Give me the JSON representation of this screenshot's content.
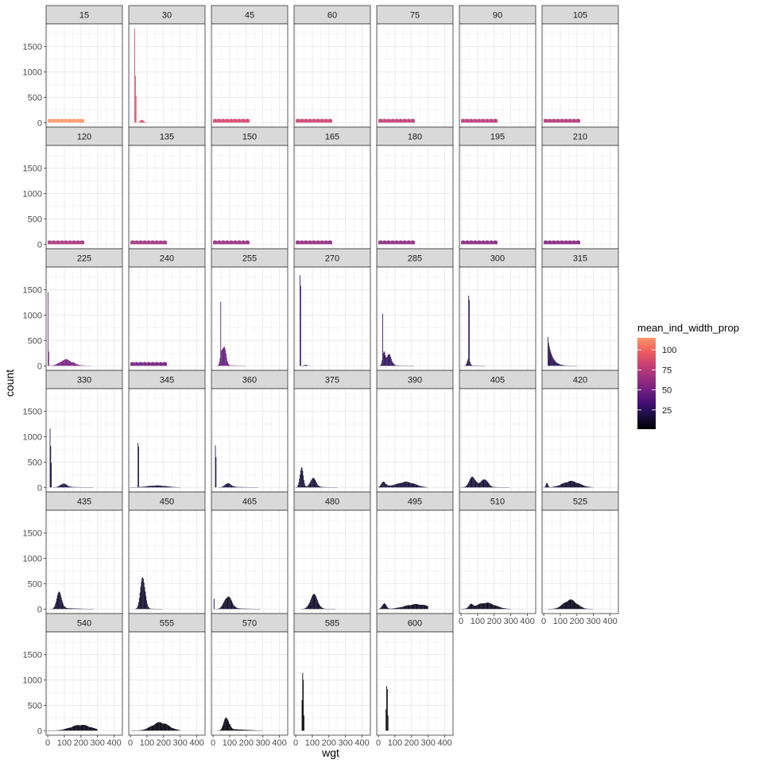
{
  "chart_data": {
    "type": "bar",
    "subtype": "faceted-histogram",
    "title": "",
    "xlabel": "wgt",
    "ylabel": "count",
    "xlim": [
      -10,
      450
    ],
    "ylim": [
      -90,
      1950
    ],
    "xticks": [
      0,
      100,
      200,
      300,
      400
    ],
    "xtick_labels": [
      "0",
      "100",
      "200",
      "300",
      "400"
    ],
    "yticks": [
      0,
      500,
      1000,
      1500
    ],
    "yticks_labels": [
      "0",
      "500",
      "1000",
      "1500"
    ],
    "grid": true,
    "facet_columns": 7,
    "fill_variable": "mean_ind_width_prop",
    "legend": {
      "title": "mean_ind_width_prop",
      "placement": "right",
      "breaks": [
        25,
        50,
        75,
        100
      ],
      "break_labels": [
        "25",
        "50",
        "75",
        "100"
      ],
      "range": [
        1,
        115
      ],
      "palette": [
        "#000004",
        "#180f3d",
        "#440f76",
        "#721f81",
        "#9e2f7f",
        "#cd4071",
        "#f1605d",
        "#fd9668"
      ]
    },
    "bin_width": 4,
    "panels": [
      {
        "label": "15",
        "fill_value": 115,
        "distribution": [
          {
            "shape": "flat",
            "from": 0,
            "to": 220,
            "level": 75
          }
        ]
      },
      {
        "label": "30",
        "fill_value": 88,
        "distribution": [
          {
            "shape": "spike",
            "at": 25,
            "height": 1860
          },
          {
            "shape": "spike",
            "at": 29,
            "height": 930
          },
          {
            "shape": "spike",
            "at": 33,
            "height": 530
          },
          {
            "shape": "bump",
            "center": 70,
            "width": 10,
            "height": 60
          }
        ]
      },
      {
        "label": "45",
        "fill_value": 85,
        "distribution": [
          {
            "shape": "flat",
            "from": 0,
            "to": 220,
            "level": 75
          }
        ]
      },
      {
        "label": "60",
        "fill_value": 82,
        "distribution": [
          {
            "shape": "flat",
            "from": 0,
            "to": 220,
            "level": 75
          }
        ]
      },
      {
        "label": "75",
        "fill_value": 79,
        "distribution": [
          {
            "shape": "flat",
            "from": 0,
            "to": 220,
            "level": 75
          }
        ]
      },
      {
        "label": "90",
        "fill_value": 76,
        "distribution": [
          {
            "shape": "flat",
            "from": 0,
            "to": 220,
            "level": 75
          }
        ]
      },
      {
        "label": "105",
        "fill_value": 73,
        "distribution": [
          {
            "shape": "flat",
            "from": 0,
            "to": 220,
            "level": 75
          }
        ]
      },
      {
        "label": "120",
        "fill_value": 70,
        "distribution": [
          {
            "shape": "flat",
            "from": 0,
            "to": 220,
            "level": 75
          }
        ]
      },
      {
        "label": "135",
        "fill_value": 67,
        "distribution": [
          {
            "shape": "flat",
            "from": 0,
            "to": 220,
            "level": 75
          }
        ]
      },
      {
        "label": "150",
        "fill_value": 64,
        "distribution": [
          {
            "shape": "flat",
            "from": 0,
            "to": 220,
            "level": 75
          }
        ]
      },
      {
        "label": "165",
        "fill_value": 62,
        "distribution": [
          {
            "shape": "flat",
            "from": 0,
            "to": 220,
            "level": 75
          }
        ]
      },
      {
        "label": "180",
        "fill_value": 60,
        "distribution": [
          {
            "shape": "flat",
            "from": 0,
            "to": 220,
            "level": 75
          }
        ]
      },
      {
        "label": "195",
        "fill_value": 58,
        "distribution": [
          {
            "shape": "flat",
            "from": 0,
            "to": 220,
            "level": 75
          }
        ]
      },
      {
        "label": "210",
        "fill_value": 56,
        "distribution": [
          {
            "shape": "flat",
            "from": 0,
            "to": 220,
            "level": 75
          }
        ]
      },
      {
        "label": "225",
        "fill_value": 52,
        "distribution": [
          {
            "shape": "spike",
            "at": 2,
            "height": 1450
          },
          {
            "shape": "spike",
            "at": 6,
            "height": 280
          },
          {
            "shape": "bump",
            "center": 110,
            "width": 35,
            "height": 130
          },
          {
            "shape": "tail",
            "from": 150,
            "to": 260,
            "level": 15
          }
        ]
      },
      {
        "label": "240",
        "fill_value": 50,
        "distribution": [
          {
            "shape": "flat",
            "from": 0,
            "to": 220,
            "level": 75
          }
        ]
      },
      {
        "label": "255",
        "fill_value": 45,
        "distribution": [
          {
            "shape": "spike",
            "at": 45,
            "height": 1030
          },
          {
            "shape": "bump",
            "center": 70,
            "width": 10,
            "height": 380
          },
          {
            "shape": "bump",
            "center": 50,
            "width": 8,
            "height": 250
          },
          {
            "shape": "tail",
            "from": 90,
            "to": 200,
            "level": 12
          }
        ]
      },
      {
        "label": "270",
        "fill_value": 30,
        "distribution": [
          {
            "shape": "spike",
            "at": 25,
            "height": 1790
          },
          {
            "shape": "spike",
            "at": 29,
            "height": 1580
          },
          {
            "shape": "bump",
            "center": 60,
            "width": 10,
            "height": 20
          }
        ]
      },
      {
        "label": "285",
        "fill_value": 26,
        "distribution": [
          {
            "shape": "spike",
            "at": 25,
            "height": 850
          },
          {
            "shape": "bump",
            "center": 65,
            "width": 14,
            "height": 240
          },
          {
            "shape": "bump",
            "center": 33,
            "width": 8,
            "height": 300
          },
          {
            "shape": "tail",
            "from": 90,
            "to": 220,
            "level": 10
          }
        ]
      },
      {
        "label": "300",
        "fill_value": 24,
        "distribution": [
          {
            "shape": "spike",
            "at": 45,
            "height": 1240
          },
          {
            "shape": "spike",
            "at": 49,
            "height": 1180
          },
          {
            "shape": "bump",
            "center": 45,
            "width": 8,
            "height": 150
          },
          {
            "shape": "tail",
            "from": 60,
            "to": 150,
            "level": 8
          }
        ]
      },
      {
        "label": "315",
        "fill_value": 22,
        "distribution": [
          {
            "shape": "spike",
            "at": 25,
            "height": 570
          },
          {
            "shape": "decay",
            "from": 30,
            "to": 200,
            "start": 450,
            "rate": 25
          }
        ]
      },
      {
        "label": "330",
        "fill_value": 20,
        "distribution": [
          {
            "shape": "spike",
            "at": 13,
            "height": 1160
          },
          {
            "shape": "spike",
            "at": 17,
            "height": 820
          },
          {
            "shape": "spike",
            "at": 21,
            "height": 480
          },
          {
            "shape": "bump",
            "center": 95,
            "width": 20,
            "height": 80
          },
          {
            "shape": "tail",
            "from": 130,
            "to": 280,
            "level": 10
          }
        ]
      },
      {
        "label": "345",
        "fill_value": 19,
        "distribution": [
          {
            "shape": "spike",
            "at": 45,
            "height": 870
          },
          {
            "shape": "spike",
            "at": 49,
            "height": 800
          },
          {
            "shape": "bump",
            "center": 160,
            "width": 60,
            "height": 40
          }
        ]
      },
      {
        "label": "360",
        "fill_value": 18,
        "distribution": [
          {
            "shape": "spike",
            "at": 15,
            "height": 830
          },
          {
            "shape": "spike",
            "at": 19,
            "height": 600
          },
          {
            "shape": "bump",
            "center": 90,
            "width": 18,
            "height": 90
          },
          {
            "shape": "tail",
            "from": 120,
            "to": 280,
            "level": 12
          }
        ]
      },
      {
        "label": "375",
        "fill_value": 17,
        "distribution": [
          {
            "shape": "bump",
            "center": 35,
            "width": 10,
            "height": 440
          },
          {
            "shape": "bump",
            "center": 105,
            "width": 18,
            "height": 190
          },
          {
            "shape": "tail",
            "from": 140,
            "to": 260,
            "level": 10
          }
        ]
      },
      {
        "label": "390",
        "fill_value": 16,
        "distribution": [
          {
            "shape": "bump",
            "center": 30,
            "width": 12,
            "height": 130
          },
          {
            "shape": "bump",
            "center": 170,
            "width": 50,
            "height": 100
          },
          {
            "shape": "tail",
            "from": 50,
            "to": 300,
            "level": 30
          }
        ]
      },
      {
        "label": "405",
        "fill_value": 15,
        "distribution": [
          {
            "shape": "bump",
            "center": 70,
            "width": 20,
            "height": 220
          },
          {
            "shape": "bump",
            "center": 140,
            "width": 20,
            "height": 180
          },
          {
            "shape": "tail",
            "from": 160,
            "to": 300,
            "level": 12
          }
        ]
      },
      {
        "label": "420",
        "fill_value": 14,
        "distribution": [
          {
            "shape": "bump",
            "center": 20,
            "width": 6,
            "height": 100
          },
          {
            "shape": "bump",
            "center": 165,
            "width": 50,
            "height": 130
          }
        ]
      },
      {
        "label": "435",
        "fill_value": 13,
        "distribution": [
          {
            "shape": "bump",
            "center": 70,
            "width": 15,
            "height": 360
          },
          {
            "shape": "tail",
            "from": 100,
            "to": 280,
            "level": 20
          }
        ]
      },
      {
        "label": "450",
        "fill_value": 12,
        "distribution": [
          {
            "shape": "bump",
            "center": 75,
            "width": 14,
            "height": 680
          },
          {
            "shape": "tail",
            "from": 110,
            "to": 200,
            "level": 8
          }
        ]
      },
      {
        "label": "465",
        "fill_value": 11,
        "distribution": [
          {
            "shape": "spike",
            "at": 5,
            "height": 200
          },
          {
            "shape": "bump",
            "center": 90,
            "width": 22,
            "height": 270
          },
          {
            "shape": "tail",
            "from": 130,
            "to": 290,
            "level": 15
          }
        ]
      },
      {
        "label": "480",
        "fill_value": 10,
        "distribution": [
          {
            "shape": "bump",
            "center": 110,
            "width": 22,
            "height": 300
          },
          {
            "shape": "tail",
            "from": 160,
            "to": 250,
            "level": 5
          }
        ]
      },
      {
        "label": "495",
        "fill_value": 9,
        "distribution": [
          {
            "shape": "bump",
            "center": 35,
            "width": 12,
            "height": 120
          },
          {
            "shape": "bump",
            "center": 230,
            "width": 70,
            "height": 100
          }
        ]
      },
      {
        "label": "510",
        "fill_value": 8,
        "distribution": [
          {
            "shape": "bump",
            "center": 60,
            "width": 12,
            "height": 70
          },
          {
            "shape": "bump",
            "center": 150,
            "width": 55,
            "height": 130
          }
        ]
      },
      {
        "label": "525",
        "fill_value": 7,
        "distribution": [
          {
            "shape": "bump",
            "center": 160,
            "width": 40,
            "height": 190
          }
        ]
      },
      {
        "label": "540",
        "fill_value": 6,
        "distribution": [
          {
            "shape": "bump",
            "center": 200,
            "width": 60,
            "height": 120
          }
        ]
      },
      {
        "label": "555",
        "fill_value": 5,
        "distribution": [
          {
            "shape": "bump",
            "center": 180,
            "width": 50,
            "height": 170
          }
        ]
      },
      {
        "label": "570",
        "fill_value": 4,
        "distribution": [
          {
            "shape": "bump",
            "center": 80,
            "width": 15,
            "height": 290
          },
          {
            "shape": "tail",
            "from": 100,
            "to": 300,
            "level": 35
          }
        ]
      },
      {
        "label": "585",
        "fill_value": 3,
        "distribution": [
          {
            "shape": "spike",
            "at": 41,
            "height": 1140
          },
          {
            "shape": "spike",
            "at": 45,
            "height": 1000
          },
          {
            "shape": "spike",
            "at": 37,
            "height": 600
          },
          {
            "shape": "spike",
            "at": 49,
            "height": 300
          }
        ]
      },
      {
        "label": "600",
        "fill_value": 2,
        "distribution": [
          {
            "shape": "spike",
            "at": 49,
            "height": 880
          },
          {
            "shape": "spike",
            "at": 53,
            "height": 820
          },
          {
            "shape": "spike",
            "at": 45,
            "height": 420
          },
          {
            "shape": "spike",
            "at": 57,
            "height": 300
          }
        ]
      }
    ]
  }
}
